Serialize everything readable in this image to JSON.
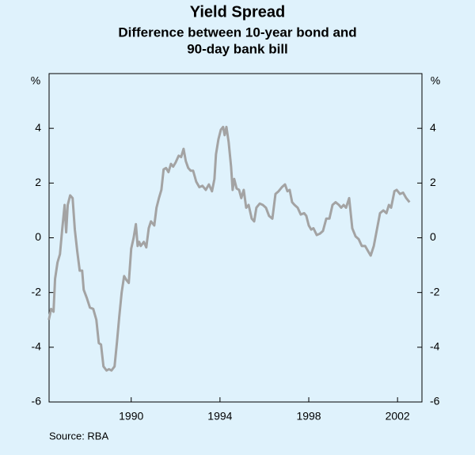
{
  "chart_data": {
    "type": "line",
    "title": "Yield Spread",
    "subtitle": [
      "Difference between 10-year bond and",
      "90-day bank bill"
    ],
    "ylabel": "%",
    "y2label": "%",
    "source": "Source: RBA",
    "xlim": [
      1986.3,
      2003.1
    ],
    "xticks": [
      1990,
      1994,
      1998,
      2002
    ],
    "ylim": [
      -6,
      6
    ],
    "yticks": [
      -6,
      -4,
      -2,
      0,
      2,
      4
    ],
    "x": [
      1986.29,
      1986.39,
      1986.5,
      1986.57,
      1986.68,
      1986.79,
      1986.89,
      1987.0,
      1987.07,
      1987.14,
      1987.25,
      1987.36,
      1987.46,
      1987.57,
      1987.68,
      1987.79,
      1987.86,
      1988.0,
      1988.14,
      1988.29,
      1988.43,
      1988.54,
      1988.64,
      1988.75,
      1988.89,
      1989.0,
      1989.11,
      1989.25,
      1989.36,
      1989.46,
      1989.57,
      1989.68,
      1989.79,
      1989.89,
      1990.0,
      1990.11,
      1990.21,
      1990.29,
      1990.36,
      1990.43,
      1990.57,
      1990.68,
      1990.79,
      1990.89,
      1991.04,
      1991.14,
      1991.25,
      1991.36,
      1991.46,
      1991.57,
      1991.68,
      1991.79,
      1991.89,
      1992.0,
      1992.14,
      1992.25,
      1992.36,
      1992.46,
      1992.57,
      1992.68,
      1992.79,
      1992.93,
      1993.07,
      1993.21,
      1993.36,
      1993.5,
      1993.64,
      1993.75,
      1993.82,
      1993.93,
      1994.04,
      1994.14,
      1994.21,
      1994.29,
      1994.39,
      1994.5,
      1994.57,
      1994.64,
      1994.75,
      1994.86,
      1994.96,
      1995.07,
      1995.18,
      1995.29,
      1995.43,
      1995.54,
      1995.64,
      1995.79,
      1995.93,
      1996.07,
      1996.21,
      1996.36,
      1996.5,
      1996.64,
      1996.79,
      1996.93,
      1997.04,
      1997.14,
      1997.25,
      1997.36,
      1997.5,
      1997.64,
      1997.79,
      1997.89,
      1998.0,
      1998.11,
      1998.21,
      1998.36,
      1998.5,
      1998.64,
      1998.79,
      1998.93,
      1999.07,
      1999.21,
      1999.36,
      1999.46,
      1999.57,
      1999.68,
      1999.82,
      1999.96,
      2000.11,
      2000.25,
      2000.39,
      2000.54,
      2000.68,
      2000.79,
      2000.93,
      2001.07,
      2001.21,
      2001.36,
      2001.5,
      2001.61,
      2001.71,
      2001.86,
      2001.96,
      2002.11,
      2002.25,
      2002.39,
      2002.54
    ],
    "series": [
      {
        "color": "#a3a3a3",
        "values": [
          -3.0,
          -2.6,
          -2.7,
          -1.5,
          -0.9,
          -0.6,
          0.3,
          1.2,
          0.2,
          1.2,
          1.55,
          1.45,
          0.3,
          -0.5,
          -1.2,
          -1.2,
          -1.9,
          -2.2,
          -2.55,
          -2.6,
          -3.0,
          -3.85,
          -3.9,
          -4.7,
          -4.85,
          -4.8,
          -4.85,
          -4.7,
          -3.8,
          -2.9,
          -2.0,
          -1.4,
          -1.55,
          -1.65,
          -0.4,
          0,
          0.5,
          -0.3,
          -0.15,
          -0.3,
          -0.15,
          -0.35,
          0.35,
          0.6,
          0.45,
          1.1,
          1.45,
          1.75,
          2.5,
          2.55,
          2.4,
          2.7,
          2.6,
          2.75,
          3.0,
          2.95,
          3.25,
          2.8,
          2.55,
          2.45,
          2.45,
          2.05,
          1.85,
          1.9,
          1.75,
          1.95,
          1.7,
          2.15,
          3.05,
          3.6,
          3.95,
          4.05,
          3.75,
          4.05,
          3.5,
          2.6,
          1.75,
          2.15,
          1.8,
          1.75,
          1.45,
          1.75,
          1.1,
          1.2,
          0.7,
          0.6,
          1.1,
          1.25,
          1.2,
          1.1,
          0.8,
          0.7,
          1.6,
          1.7,
          1.85,
          1.95,
          1.7,
          1.75,
          1.3,
          1.2,
          1.1,
          0.85,
          0.9,
          0.8,
          0.45,
          0.3,
          0.35,
          0.1,
          0.15,
          0.25,
          0.7,
          0.7,
          1.2,
          1.3,
          1.2,
          1.1,
          1.2,
          1.1,
          1.45,
          0.35,
          0.05,
          -0.05,
          -0.3,
          -0.3,
          -0.5,
          -0.65,
          -0.3,
          0.3,
          0.9,
          1.0,
          0.9,
          1.2,
          1.1,
          1.7,
          1.75,
          1.6,
          1.65,
          1.45,
          1.3
        ]
      }
    ]
  }
}
